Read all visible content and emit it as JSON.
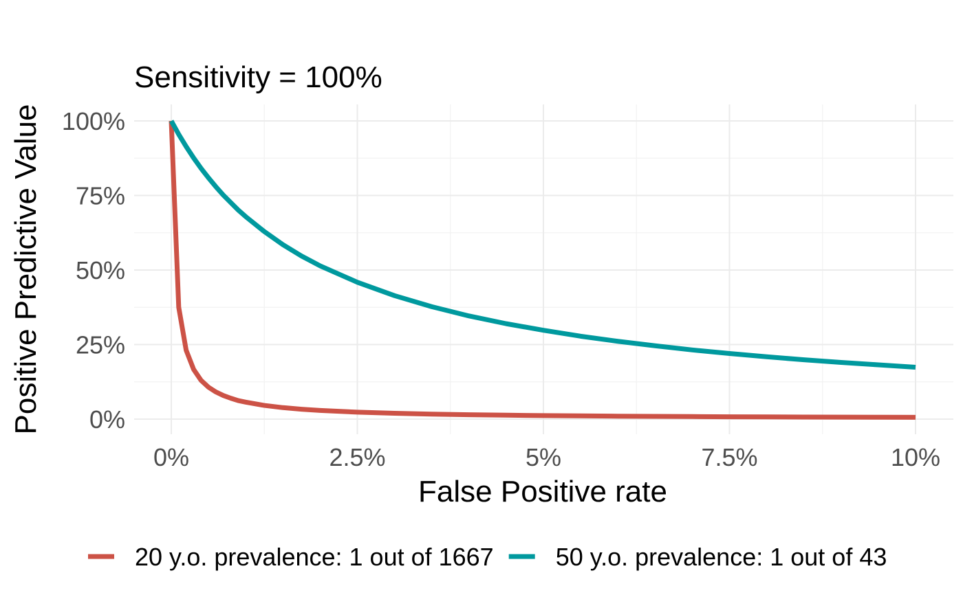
{
  "chart_data": {
    "type": "line",
    "title": "Sensitivity = 100%",
    "xlabel": "False Positive rate",
    "ylabel": "Positive Predictive Value",
    "xlim": [
      0,
      0.1
    ],
    "ylim": [
      0,
      1
    ],
    "x_ticks": [
      0,
      0.025,
      0.05,
      0.075,
      0.1
    ],
    "x_tick_labels": [
      "0%",
      "2.5%",
      "5%",
      "7.5%",
      "10%"
    ],
    "y_ticks": [
      0,
      0.25,
      0.5,
      0.75,
      1
    ],
    "y_tick_labels": [
      "0%",
      "25%",
      "50%",
      "75%",
      "100%"
    ],
    "grid": true,
    "legend_position": "bottom",
    "sensitivity": 1.0,
    "x": [
      0,
      0.001,
      0.002,
      0.003,
      0.004,
      0.005,
      0.006,
      0.007,
      0.008,
      0.009,
      0.01,
      0.0125,
      0.015,
      0.0175,
      0.02,
      0.025,
      0.03,
      0.035,
      0.04,
      0.045,
      0.05,
      0.055,
      0.06,
      0.065,
      0.07,
      0.075,
      0.08,
      0.085,
      0.09,
      0.095,
      0.1
    ],
    "series": [
      {
        "name": "20 y.o. prevalence: 1 out of 1667",
        "color": "#cc5246",
        "values": [
          1.0,
          0.375,
          0.231,
          0.167,
          0.13,
          0.107,
          0.091,
          0.079,
          0.07,
          0.062,
          0.057,
          0.0459,
          0.0385,
          0.0331,
          0.029,
          0.0233,
          0.0196,
          0.0168,
          0.0148,
          0.0131,
          0.0119,
          0.0108,
          0.0099,
          0.0092,
          0.0085,
          0.0079,
          0.0074,
          0.007,
          0.0066,
          0.0063,
          0.006
        ]
      },
      {
        "name": "50 y.o. prevalence: 1 out of 43",
        "color": "#00999e",
        "values": [
          1.0,
          0.955,
          0.914,
          0.876,
          0.841,
          0.809,
          0.779,
          0.751,
          0.726,
          0.701,
          0.679,
          0.629,
          0.585,
          0.547,
          0.514,
          0.459,
          0.414,
          0.377,
          0.346,
          0.32,
          0.298,
          0.278,
          0.261,
          0.246,
          0.232,
          0.22,
          0.209,
          0.199,
          0.19,
          0.182,
          0.174
        ]
      }
    ]
  }
}
